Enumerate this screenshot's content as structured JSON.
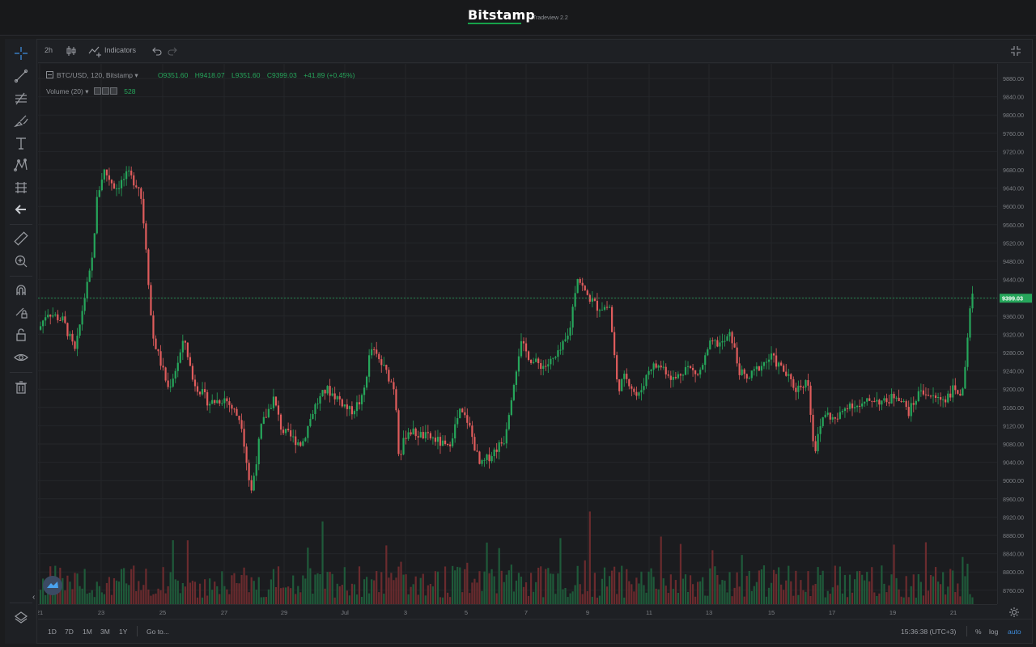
{
  "header": {
    "brand": "Bitstamp",
    "version": "Tradeview 2.2"
  },
  "toolbar": {
    "interval": "2h",
    "indicators_label": "Indicators"
  },
  "left_tools": [
    {
      "name": "crosshair-icon"
    },
    {
      "name": "trend-line-icon"
    },
    {
      "name": "fib-tools-icon"
    },
    {
      "name": "brush-icon"
    },
    {
      "name": "text-icon"
    },
    {
      "name": "pattern-icon"
    },
    {
      "name": "prediction-icon"
    },
    {
      "name": "back-arrow-icon"
    },
    {
      "name": "ruler-icon"
    },
    {
      "name": "zoom-in-icon"
    },
    {
      "name": "magnet-icon"
    },
    {
      "name": "lock-drawing-icon"
    },
    {
      "name": "lock-icon"
    },
    {
      "name": "eye-icon"
    },
    {
      "name": "trash-icon"
    }
  ],
  "legend": {
    "symbol": "BTC/USD, 120, Bitstamp",
    "open": "O9351.60",
    "high": "H9418.07",
    "low": "L9351.60",
    "close": "C9399.03",
    "change": "+41.89 (+0.45%)",
    "volume_label": "Volume (20)",
    "volume_value": "528"
  },
  "price_axis": {
    "ticks": [
      "9880.00",
      "9840.00",
      "9800.00",
      "9760.00",
      "9720.00",
      "9680.00",
      "9640.00",
      "9600.00",
      "9560.00",
      "9520.00",
      "9480.00",
      "9440.00",
      "9400.00",
      "9360.00",
      "9320.00",
      "9280.00",
      "9240.00",
      "9200.00",
      "9160.00",
      "9120.00",
      "9080.00",
      "9040.00",
      "9000.00",
      "8960.00",
      "8920.00",
      "8880.00",
      "8840.00",
      "8800.00",
      "8760.00"
    ],
    "current_price": "9399.03"
  },
  "time_axis": {
    "ticks": [
      "21",
      "23",
      "25",
      "27",
      "29",
      "Jul",
      "3",
      "5",
      "7",
      "9",
      "11",
      "13",
      "15",
      "17",
      "19",
      "21"
    ]
  },
  "bottom": {
    "ranges": [
      "1D",
      "7D",
      "1M",
      "3M",
      "1Y"
    ],
    "goto_label": "Go to...",
    "clock": "15:36:38 (UTC+3)",
    "percent_label": "%",
    "log_label": "log",
    "auto_label": "auto"
  },
  "colors": {
    "up": "#26a65b",
    "down": "#e05c5c",
    "accent": "#2962ff"
  }
}
